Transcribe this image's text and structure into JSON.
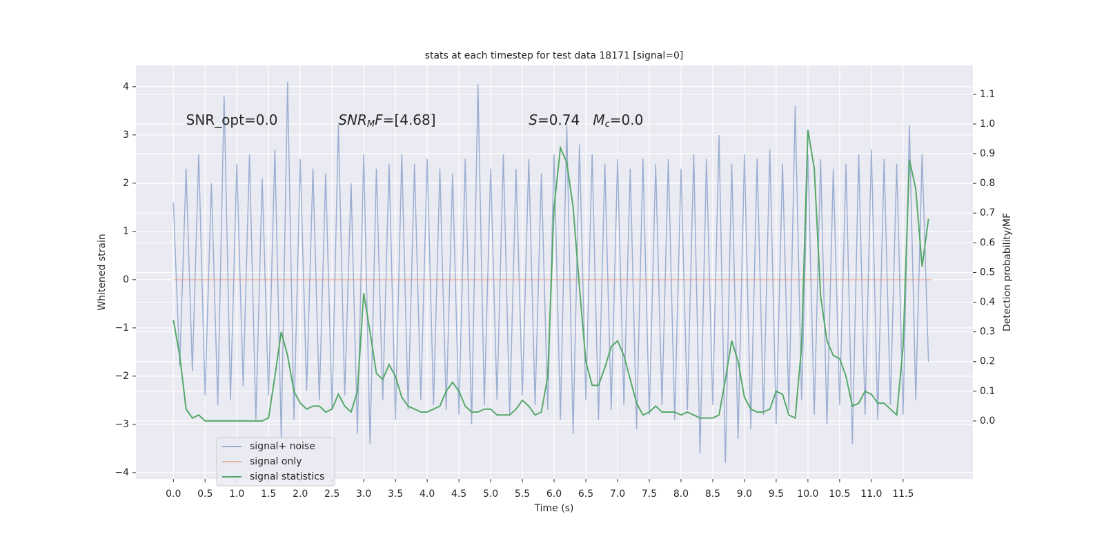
{
  "chart_data": {
    "type": "line",
    "title": "stats at each timestep for test data 18171 [signal=0]",
    "xlabel": "Time (s)",
    "ylabel": "Whitened strain",
    "y2label": "Detection probability/MF",
    "xlim": [
      -0.59,
      12.6
    ],
    "ylim": [
      -4.13,
      4.44
    ],
    "y2lim": [
      -0.195,
      1.197
    ],
    "grid": true,
    "background": "#eaeaf2",
    "xticks": [
      {
        "value": 0,
        "label": "0.0"
      },
      {
        "value": 0.5,
        "label": "0.5"
      },
      {
        "value": 1,
        "label": "1.0"
      },
      {
        "value": 1.5,
        "label": "1.5"
      },
      {
        "value": 2,
        "label": "2.0"
      },
      {
        "value": 2.5,
        "label": "2.5"
      },
      {
        "value": 3,
        "label": "3.0"
      },
      {
        "value": 3.5,
        "label": "3.5"
      },
      {
        "value": 4,
        "label": "4.0"
      },
      {
        "value": 4.5,
        "label": "4.5"
      },
      {
        "value": 5,
        "label": "5.0"
      },
      {
        "value": 5.5,
        "label": "5.5"
      },
      {
        "value": 6,
        "label": "6.0"
      },
      {
        "value": 6.5,
        "label": "6.5"
      },
      {
        "value": 7,
        "label": "7.0"
      },
      {
        "value": 7.5,
        "label": "7.5"
      },
      {
        "value": 8,
        "label": "8.0"
      },
      {
        "value": 8.5,
        "label": "8.5"
      },
      {
        "value": 9,
        "label": "9.0"
      },
      {
        "value": 9.5,
        "label": "9.5"
      },
      {
        "value": 10,
        "label": "10.0"
      },
      {
        "value": 10.5,
        "label": "10.5"
      },
      {
        "value": 11,
        "label": "11.0"
      },
      {
        "value": 11.5,
        "label": "11.5"
      }
    ],
    "yticks": [
      {
        "value": -4,
        "label": "−4"
      },
      {
        "value": -3,
        "label": "−3"
      },
      {
        "value": -2,
        "label": "−2"
      },
      {
        "value": -1,
        "label": "−1"
      },
      0,
      1,
      2,
      3,
      4
    ],
    "y2ticks": [
      {
        "value": 0,
        "label": "0.0"
      },
      {
        "value": 0.1,
        "label": "0.1"
      },
      {
        "value": 0.2,
        "label": "0.2"
      },
      {
        "value": 0.3,
        "label": "0.3"
      },
      {
        "value": 0.4,
        "label": "0.4"
      },
      {
        "value": 0.5,
        "label": "0.5"
      },
      {
        "value": 0.6,
        "label": "0.6"
      },
      {
        "value": 0.7,
        "label": "0.7"
      },
      {
        "value": 0.8,
        "label": "0.8"
      },
      {
        "value": 0.9,
        "label": "0.9"
      },
      {
        "value": 1,
        "label": "1.0"
      },
      {
        "value": 1.1,
        "label": "1.1"
      }
    ],
    "annotations": [
      {
        "x": 0.2,
        "y": 3.3,
        "parts": [
          {
            "text": "SNR_opt=0.0"
          }
        ]
      },
      {
        "x": 2.6,
        "y": 3.3,
        "parts": [
          {
            "text": "SNR",
            "italic": true
          },
          {
            "text": "M",
            "italic": true,
            "sub": true
          },
          {
            "text": "F",
            "italic": true
          },
          {
            "text": "=[4.68]"
          }
        ]
      },
      {
        "x": 5.6,
        "y": 3.3,
        "parts": [
          {
            "text": "S",
            "italic": true
          },
          {
            "text": "=0.74   "
          },
          {
            "text": "M",
            "italic": true
          },
          {
            "text": "c",
            "italic": true,
            "sub": true
          },
          {
            "text": "=0.0"
          }
        ]
      }
    ],
    "x": [
      0,
      0.1,
      0.2,
      0.3,
      0.4,
      0.5,
      0.6,
      0.7,
      0.8,
      0.9,
      1,
      1.1,
      1.2,
      1.3,
      1.4,
      1.5,
      1.6,
      1.7,
      1.8,
      1.9,
      2,
      2.1,
      2.2,
      2.3,
      2.4,
      2.5,
      2.6,
      2.7,
      2.8,
      2.9,
      3,
      3.1,
      3.2,
      3.3,
      3.4,
      3.5,
      3.6,
      3.7,
      3.8,
      3.9,
      4,
      4.1,
      4.2,
      4.3,
      4.4,
      4.5,
      4.6,
      4.7,
      4.8,
      4.9,
      5,
      5.1,
      5.2,
      5.3,
      5.4,
      5.5,
      5.6,
      5.7,
      5.8,
      5.9,
      6,
      6.1,
      6.2,
      6.3,
      6.4,
      6.5,
      6.6,
      6.7,
      6.8,
      6.9,
      7,
      7.1,
      7.2,
      7.3,
      7.4,
      7.5,
      7.6,
      7.7,
      7.8,
      7.9,
      8,
      8.1,
      8.2,
      8.3,
      8.4,
      8.5,
      8.6,
      8.7,
      8.8,
      8.9,
      9,
      9.1,
      9.2,
      9.3,
      9.4,
      9.5,
      9.6,
      9.7,
      9.8,
      9.9,
      10,
      10.1,
      10.2,
      10.3,
      10.4,
      10.5,
      10.6,
      10.7,
      10.8,
      10.9,
      11,
      11.1,
      11.2,
      11.3,
      11.4,
      11.5,
      11.6,
      11.7,
      11.8,
      11.9
    ],
    "series": [
      {
        "name": "signal+ noise",
        "color": "#4c72b0",
        "opacity": 0.5,
        "values": [
          1.6,
          -1.8,
          2.3,
          -1.9,
          2.6,
          -2.4,
          2.0,
          -2.6,
          3.8,
          -2.5,
          2.4,
          -2.2,
          2.6,
          -2.9,
          2.1,
          -2.4,
          2.7,
          -3.3,
          4.1,
          -2.9,
          2.5,
          -2.3,
          2.3,
          -2.5,
          2.2,
          -2.7,
          3.2,
          -2.4,
          2.0,
          -3.2,
          2.6,
          -3.4,
          2.3,
          -2.5,
          2.4,
          -2.9,
          2.6,
          -2.7,
          2.4,
          -2.5,
          2.5,
          -2.6,
          2.3,
          -2.7,
          2.2,
          -2.8,
          2.5,
          -3.0,
          4.05,
          -2.6,
          2.3,
          -2.5,
          2.6,
          -2.8,
          2.3,
          -2.4,
          2.5,
          -2.6,
          2.2,
          -2.7,
          2.6,
          -2.9,
          3.2,
          -3.2,
          2.8,
          -2.5,
          2.6,
          -2.9,
          2.4,
          -2.7,
          2.5,
          -2.6,
          2.3,
          -3.1,
          2.5,
          -2.8,
          2.4,
          -2.6,
          2.5,
          -2.9,
          2.3,
          -2.7,
          2.6,
          -3.6,
          2.5,
          -2.6,
          3.0,
          -3.8,
          2.4,
          -3.3,
          2.6,
          -3.1,
          2.5,
          -2.8,
          2.7,
          -3.0,
          2.4,
          -2.7,
          3.6,
          -2.5,
          2.6,
          -2.8,
          2.5,
          -3.0,
          2.3,
          -2.6,
          2.4,
          -3.4,
          2.6,
          -2.8,
          2.7,
          -2.9,
          2.5,
          -2.6,
          2.4,
          -2.8,
          3.2,
          -2.5,
          2.6,
          -1.7
        ]
      },
      {
        "name": "signal only",
        "color": "#dd8452",
        "opacity": 0.5,
        "x": [
          0,
          11.95
        ],
        "values": [
          0,
          0
        ]
      },
      {
        "name": "signal statistics",
        "color": "#55a868",
        "opacity": 1,
        "axis": "y2",
        "values": [
          0.34,
          0.22,
          0.04,
          0.01,
          0.02,
          0,
          0,
          0,
          0,
          0,
          0,
          0,
          0,
          0,
          0,
          0.01,
          0.15,
          0.3,
          0.22,
          0.1,
          0.06,
          0.04,
          0.05,
          0.05,
          0.03,
          0.04,
          0.09,
          0.05,
          0.03,
          0.1,
          0.43,
          0.3,
          0.16,
          0.14,
          0.19,
          0.15,
          0.08,
          0.05,
          0.04,
          0.03,
          0.03,
          0.04,
          0.05,
          0.1,
          0.13,
          0.1,
          0.05,
          0.03,
          0.03,
          0.04,
          0.04,
          0.02,
          0.02,
          0.02,
          0.04,
          0.07,
          0.05,
          0.02,
          0.03,
          0.15,
          0.72,
          0.92,
          0.87,
          0.72,
          0.45,
          0.2,
          0.12,
          0.12,
          0.18,
          0.25,
          0.27,
          0.22,
          0.14,
          0.06,
          0.02,
          0.03,
          0.05,
          0.03,
          0.03,
          0.03,
          0.02,
          0.03,
          0.02,
          0.01,
          0.01,
          0.01,
          0.02,
          0.14,
          0.27,
          0.2,
          0.08,
          0.04,
          0.03,
          0.03,
          0.04,
          0.1,
          0.09,
          0.02,
          0.01,
          0.25,
          0.98,
          0.85,
          0.42,
          0.27,
          0.22,
          0.21,
          0.15,
          0.05,
          0.06,
          0.1,
          0.09,
          0.06,
          0.06,
          0.04,
          0.02,
          0.25,
          0.88,
          0.78,
          0.52,
          0.68
        ]
      }
    ]
  }
}
